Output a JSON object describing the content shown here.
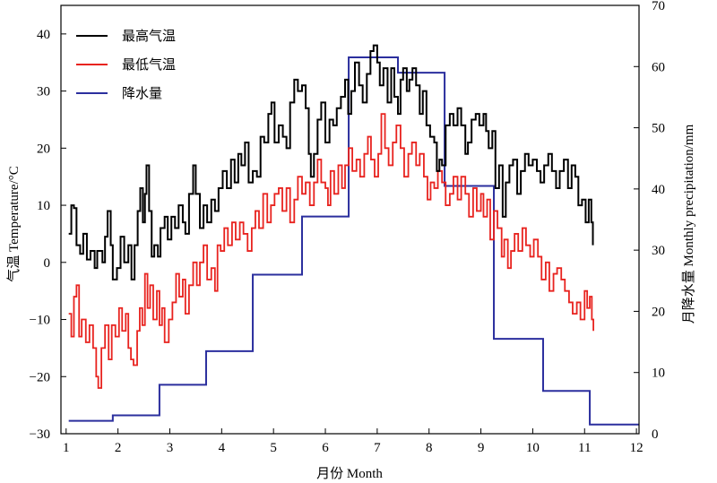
{
  "chart_data": {
    "type": "line",
    "title": "",
    "xlabel": "月份 Month",
    "ylabel_left": "气温 Temperature/°C",
    "ylabel_right": "月降水量 Monthly precipitation/mm",
    "xlim": [
      0.9,
      12.05
    ],
    "ylim_left": [
      -30,
      45
    ],
    "ylim_right": [
      0,
      70
    ],
    "x_ticks": [
      1,
      2,
      3,
      4,
      5,
      6,
      7,
      8,
      9,
      10,
      11,
      12
    ],
    "y_left_ticks": [
      -30,
      -20,
      -10,
      0,
      10,
      20,
      30,
      40
    ],
    "y_right_ticks": [
      0,
      10,
      20,
      30,
      40,
      50,
      60,
      70
    ],
    "grid": false,
    "legend_position": "top-left",
    "series": [
      {
        "name": "最高气温",
        "axis": "left",
        "color": "#000000",
        "points": [
          [
            1.05,
            5
          ],
          [
            1.1,
            10
          ],
          [
            1.15,
            9.5
          ],
          [
            1.2,
            3
          ],
          [
            1.27,
            1.5
          ],
          [
            1.33,
            5
          ],
          [
            1.4,
            0.5
          ],
          [
            1.47,
            2
          ],
          [
            1.55,
            -1
          ],
          [
            1.6,
            2
          ],
          [
            1.7,
            0
          ],
          [
            1.75,
            4.5
          ],
          [
            1.8,
            9
          ],
          [
            1.86,
            3
          ],
          [
            1.9,
            -3
          ],
          [
            1.98,
            -1
          ],
          [
            2.05,
            4.5
          ],
          [
            2.12,
            0
          ],
          [
            2.2,
            3
          ],
          [
            2.26,
            -3
          ],
          [
            2.32,
            3
          ],
          [
            2.38,
            9
          ],
          [
            2.43,
            13
          ],
          [
            2.48,
            7
          ],
          [
            2.52,
            12
          ],
          [
            2.55,
            17
          ],
          [
            2.6,
            9
          ],
          [
            2.65,
            1
          ],
          [
            2.7,
            3
          ],
          [
            2.77,
            1
          ],
          [
            2.82,
            6
          ],
          [
            2.9,
            8
          ],
          [
            2.96,
            4
          ],
          [
            3.03,
            8
          ],
          [
            3.1,
            6
          ],
          [
            3.17,
            10
          ],
          [
            3.25,
            7
          ],
          [
            3.3,
            5
          ],
          [
            3.37,
            12
          ],
          [
            3.45,
            17
          ],
          [
            3.5,
            12
          ],
          [
            3.58,
            6
          ],
          [
            3.65,
            10
          ],
          [
            3.72,
            7
          ],
          [
            3.8,
            11
          ],
          [
            3.87,
            9
          ],
          [
            3.94,
            13
          ],
          [
            4.02,
            16
          ],
          [
            4.1,
            13
          ],
          [
            4.18,
            18
          ],
          [
            4.25,
            14
          ],
          [
            4.32,
            19
          ],
          [
            4.38,
            17
          ],
          [
            4.45,
            21
          ],
          [
            4.52,
            14
          ],
          [
            4.6,
            16
          ],
          [
            4.68,
            15
          ],
          [
            4.75,
            22
          ],
          [
            4.82,
            21
          ],
          [
            4.9,
            26
          ],
          [
            4.96,
            28
          ],
          [
            5.02,
            21
          ],
          [
            5.1,
            24
          ],
          [
            5.18,
            22
          ],
          [
            5.25,
            20
          ],
          [
            5.32,
            28
          ],
          [
            5.4,
            32
          ],
          [
            5.47,
            30
          ],
          [
            5.55,
            31
          ],
          [
            5.62,
            27
          ],
          [
            5.68,
            19
          ],
          [
            5.72,
            15
          ],
          [
            5.78,
            19
          ],
          [
            5.85,
            25
          ],
          [
            5.92,
            28
          ],
          [
            6.0,
            21
          ],
          [
            6.08,
            25
          ],
          [
            6.15,
            24
          ],
          [
            6.22,
            27
          ],
          [
            6.3,
            29
          ],
          [
            6.38,
            32
          ],
          [
            6.44,
            26
          ],
          [
            6.5,
            30
          ],
          [
            6.57,
            35
          ],
          [
            6.65,
            31
          ],
          [
            6.72,
            28
          ],
          [
            6.8,
            33
          ],
          [
            6.87,
            37
          ],
          [
            6.93,
            38
          ],
          [
            7.0,
            35
          ],
          [
            7.05,
            31
          ],
          [
            7.12,
            34
          ],
          [
            7.2,
            28
          ],
          [
            7.27,
            34
          ],
          [
            7.33,
            29
          ],
          [
            7.4,
            26
          ],
          [
            7.45,
            32
          ],
          [
            7.5,
            34
          ],
          [
            7.57,
            30
          ],
          [
            7.62,
            32
          ],
          [
            7.68,
            34
          ],
          [
            7.75,
            31
          ],
          [
            7.82,
            26
          ],
          [
            7.88,
            30
          ],
          [
            7.95,
            24
          ],
          [
            8.02,
            22
          ],
          [
            8.1,
            21
          ],
          [
            8.15,
            16
          ],
          [
            8.2,
            18
          ],
          [
            8.25,
            17
          ],
          [
            8.32,
            24
          ],
          [
            8.4,
            26
          ],
          [
            8.47,
            24
          ],
          [
            8.55,
            27
          ],
          [
            8.62,
            24
          ],
          [
            8.7,
            19
          ],
          [
            8.75,
            21
          ],
          [
            8.82,
            25
          ],
          [
            8.9,
            26
          ],
          [
            8.97,
            24
          ],
          [
            9.05,
            26
          ],
          [
            9.1,
            23
          ],
          [
            9.15,
            20
          ],
          [
            9.22,
            23
          ],
          [
            9.28,
            13
          ],
          [
            9.35,
            17
          ],
          [
            9.42,
            8
          ],
          [
            9.48,
            14
          ],
          [
            9.55,
            17
          ],
          [
            9.62,
            18
          ],
          [
            9.7,
            12
          ],
          [
            9.77,
            16
          ],
          [
            9.85,
            19
          ],
          [
            9.92,
            17
          ],
          [
            10.0,
            18
          ],
          [
            10.08,
            16
          ],
          [
            10.15,
            14
          ],
          [
            10.22,
            17
          ],
          [
            10.3,
            19
          ],
          [
            10.37,
            16
          ],
          [
            10.45,
            13
          ],
          [
            10.52,
            16
          ],
          [
            10.6,
            18
          ],
          [
            10.68,
            13
          ],
          [
            10.75,
            17
          ],
          [
            10.82,
            15
          ],
          [
            10.88,
            10
          ],
          [
            10.95,
            11
          ],
          [
            11.02,
            7
          ],
          [
            11.08,
            11
          ],
          [
            11.13,
            7
          ],
          [
            11.16,
            3
          ]
        ]
      },
      {
        "name": "最低气温",
        "axis": "left",
        "color": "#e8231f",
        "points": [
          [
            1.05,
            -9
          ],
          [
            1.1,
            -13
          ],
          [
            1.15,
            -6
          ],
          [
            1.2,
            -4
          ],
          [
            1.25,
            -13
          ],
          [
            1.3,
            -10
          ],
          [
            1.38,
            -14
          ],
          [
            1.45,
            -11
          ],
          [
            1.52,
            -15
          ],
          [
            1.58,
            -20
          ],
          [
            1.62,
            -22
          ],
          [
            1.68,
            -15
          ],
          [
            1.75,
            -11
          ],
          [
            1.82,
            -17
          ],
          [
            1.88,
            -11
          ],
          [
            1.95,
            -13
          ],
          [
            2.02,
            -8
          ],
          [
            2.08,
            -12
          ],
          [
            2.15,
            -9
          ],
          [
            2.2,
            -15
          ],
          [
            2.25,
            -17
          ],
          [
            2.3,
            -18
          ],
          [
            2.37,
            -12
          ],
          [
            2.42,
            -8
          ],
          [
            2.47,
            -11
          ],
          [
            2.52,
            -2
          ],
          [
            2.57,
            -8
          ],
          [
            2.62,
            -4
          ],
          [
            2.68,
            -10
          ],
          [
            2.75,
            -5
          ],
          [
            2.8,
            -11
          ],
          [
            2.85,
            -8
          ],
          [
            2.9,
            -14
          ],
          [
            2.98,
            -10
          ],
          [
            3.05,
            -7
          ],
          [
            3.12,
            -2
          ],
          [
            3.18,
            -6
          ],
          [
            3.25,
            -3
          ],
          [
            3.3,
            -9
          ],
          [
            3.37,
            -4
          ],
          [
            3.45,
            0
          ],
          [
            3.52,
            -4
          ],
          [
            3.58,
            0
          ],
          [
            3.65,
            3
          ],
          [
            3.72,
            -3
          ],
          [
            3.8,
            -1
          ],
          [
            3.87,
            -5
          ],
          [
            3.92,
            3
          ],
          [
            3.98,
            2
          ],
          [
            4.05,
            6
          ],
          [
            4.12,
            3
          ],
          [
            4.2,
            7
          ],
          [
            4.27,
            4
          ],
          [
            4.35,
            7
          ],
          [
            4.42,
            5
          ],
          [
            4.5,
            2
          ],
          [
            4.58,
            6
          ],
          [
            4.65,
            9
          ],
          [
            4.72,
            6
          ],
          [
            4.8,
            12
          ],
          [
            4.88,
            7
          ],
          [
            4.95,
            10
          ],
          [
            5.02,
            12
          ],
          [
            5.1,
            13
          ],
          [
            5.17,
            9
          ],
          [
            5.25,
            13
          ],
          [
            5.32,
            7
          ],
          [
            5.4,
            11
          ],
          [
            5.47,
            15
          ],
          [
            5.55,
            12
          ],
          [
            5.62,
            14
          ],
          [
            5.7,
            10
          ],
          [
            5.78,
            14
          ],
          [
            5.85,
            18
          ],
          [
            5.92,
            14
          ],
          [
            6.0,
            13
          ],
          [
            6.05,
            10
          ],
          [
            6.1,
            16
          ],
          [
            6.17,
            12
          ],
          [
            6.25,
            17
          ],
          [
            6.32,
            13
          ],
          [
            6.38,
            17
          ],
          [
            6.45,
            20
          ],
          [
            6.52,
            16
          ],
          [
            6.6,
            18
          ],
          [
            6.67,
            15
          ],
          [
            6.75,
            19
          ],
          [
            6.82,
            22
          ],
          [
            6.88,
            18
          ],
          [
            6.95,
            15
          ],
          [
            7.02,
            19
          ],
          [
            7.08,
            26
          ],
          [
            7.15,
            20
          ],
          [
            7.22,
            17
          ],
          [
            7.3,
            21
          ],
          [
            7.37,
            24
          ],
          [
            7.45,
            20
          ],
          [
            7.52,
            15
          ],
          [
            7.6,
            19
          ],
          [
            7.67,
            21
          ],
          [
            7.75,
            17
          ],
          [
            7.82,
            19
          ],
          [
            7.9,
            15
          ],
          [
            7.97,
            11
          ],
          [
            8.03,
            14
          ],
          [
            8.1,
            13
          ],
          [
            8.17,
            16
          ],
          [
            8.25,
            14
          ],
          [
            8.32,
            10
          ],
          [
            8.4,
            12
          ],
          [
            8.47,
            15
          ],
          [
            8.55,
            11
          ],
          [
            8.62,
            15
          ],
          [
            8.7,
            12
          ],
          [
            8.77,
            8
          ],
          [
            8.85,
            13
          ],
          [
            8.92,
            9
          ],
          [
            9.0,
            12
          ],
          [
            9.05,
            8
          ],
          [
            9.12,
            11
          ],
          [
            9.18,
            4
          ],
          [
            9.25,
            9
          ],
          [
            9.32,
            6
          ],
          [
            9.4,
            1
          ],
          [
            9.45,
            4
          ],
          [
            9.52,
            -1
          ],
          [
            9.58,
            2
          ],
          [
            9.65,
            5
          ],
          [
            9.72,
            2
          ],
          [
            9.8,
            6
          ],
          [
            9.87,
            3
          ],
          [
            9.95,
            1
          ],
          [
            10.02,
            4
          ],
          [
            10.1,
            1
          ],
          [
            10.17,
            -3
          ],
          [
            10.25,
            0
          ],
          [
            10.32,
            -5
          ],
          [
            10.4,
            -2
          ],
          [
            10.47,
            -1
          ],
          [
            10.55,
            -3
          ],
          [
            10.62,
            -5
          ],
          [
            10.7,
            -7
          ],
          [
            10.77,
            -9
          ],
          [
            10.85,
            -7
          ],
          [
            10.92,
            -10
          ],
          [
            11.0,
            -5
          ],
          [
            11.05,
            -8
          ],
          [
            11.1,
            -6
          ],
          [
            11.14,
            -10
          ],
          [
            11.17,
            -12
          ]
        ]
      },
      {
        "name": "降水量",
        "axis": "right",
        "color": "#2b2f9e",
        "steps": [
          [
            1.05,
            2.1
          ],
          [
            1.9,
            3
          ],
          [
            2.8,
            8
          ],
          [
            3.7,
            13.5
          ],
          [
            4.6,
            26
          ],
          [
            5.55,
            35.5
          ],
          [
            6.45,
            61.5
          ],
          [
            7.4,
            59
          ],
          [
            8.3,
            40.5
          ],
          [
            9.25,
            15.5
          ],
          [
            10.2,
            7
          ],
          [
            11.1,
            1.5
          ],
          [
            12.05,
            1.5
          ]
        ]
      }
    ]
  }
}
